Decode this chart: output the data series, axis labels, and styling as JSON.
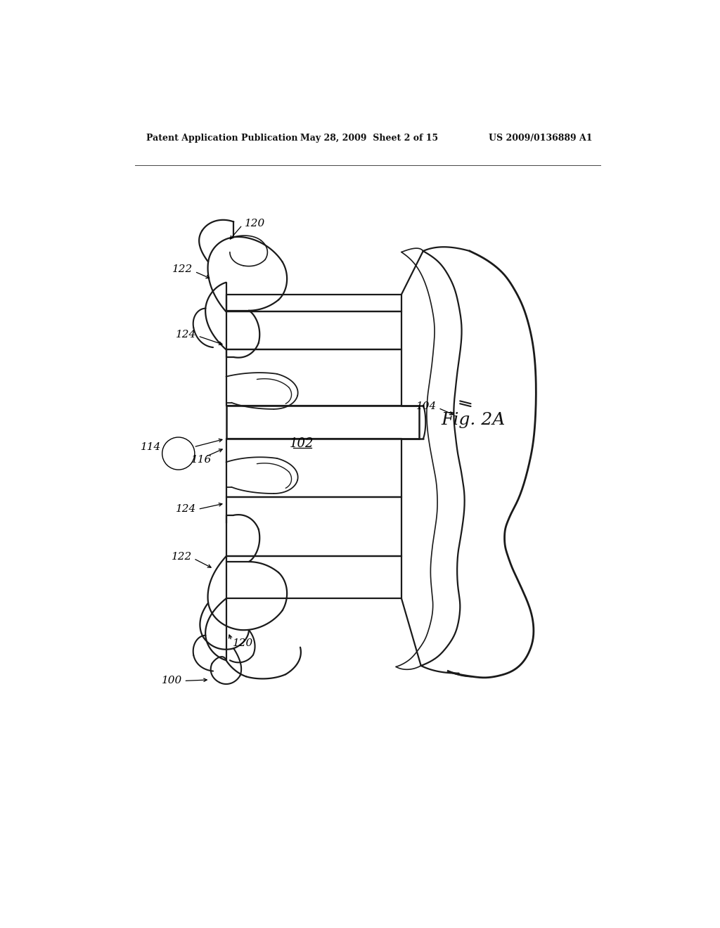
{
  "background_color": "#ffffff",
  "header_left": "Patent Application Publication",
  "header_center": "May 28, 2009  Sheet 2 of 15",
  "header_right": "US 2009/0136889 A1",
  "fig_label": "Fig. 2A",
  "line_color": "#1a1a1a",
  "line_width": 1.5
}
